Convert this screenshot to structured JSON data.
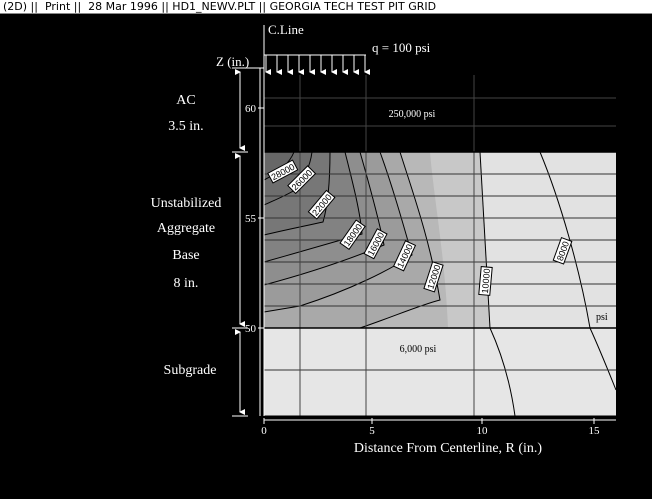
{
  "window": {
    "title": "(2D) ||  Print ||  28 Mar 1996 || HD1_NEWV.PLT || GEORGIA TECH TEST PIT GRID"
  },
  "plot": {
    "z_label": "Z (in.)",
    "x_label": "Distance From Centerline, R (in.)",
    "centerline_label": "C.Line",
    "load_label": "q = 100 psi",
    "x_ticks": [
      "0",
      "5",
      "10",
      "15"
    ],
    "z_ticks": [
      "60",
      "55",
      "50"
    ],
    "psi_unit_label": "psi"
  },
  "layers": {
    "ac": {
      "name": "AC",
      "thickness": "3.5 in.",
      "modulus": "250,000 psi"
    },
    "base": {
      "lines": [
        "Unstabilized",
        "Aggregate",
        "Base",
        "8 in."
      ]
    },
    "subgrade": {
      "name": "Subgrade",
      "modulus": "6,000 psi"
    }
  },
  "contours": {
    "labels": [
      "28000",
      "26000",
      "22000",
      "18000",
      "16000",
      "14000",
      "12000",
      "10000",
      "8000"
    ]
  },
  "colors": {
    "background": "#000000",
    "ac_layer": "#000000",
    "subgrade": "#e6e6e6",
    "base_darkest": "#6a6a6a",
    "base_lightest": "#e2e2e2",
    "text": "#ffffff"
  }
}
